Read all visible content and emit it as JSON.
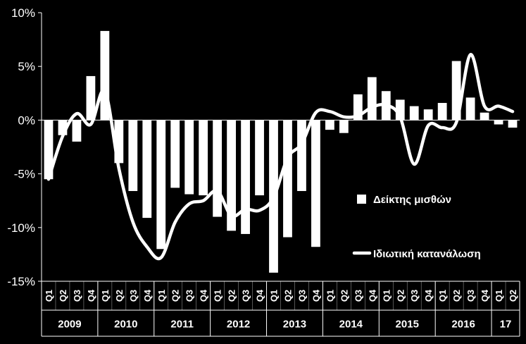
{
  "chart_data": {
    "type": "bar",
    "y_axis": {
      "ticks": [
        10,
        5,
        0,
        -5,
        -10,
        -15
      ],
      "tick_labels": [
        "10%",
        "5%",
        "0%",
        "-5%",
        "-10%",
        "-15%"
      ],
      "ylim": [
        -15,
        10
      ]
    },
    "x_quarter_labels": [
      "Q1",
      "Q2",
      "Q3",
      "Q4",
      "Q1",
      "Q2",
      "Q3",
      "Q4",
      "Q1",
      "Q2",
      "Q3",
      "Q4",
      "Q1",
      "Q2",
      "Q3",
      "Q4",
      "Q1",
      "Q2",
      "Q3",
      "Q4",
      "Q1",
      "Q2",
      "Q3",
      "Q4",
      "Q1",
      "Q2",
      "Q3",
      "Q4",
      "Q1",
      "Q2",
      "Q3",
      "Q4",
      "Q1",
      "Q2"
    ],
    "year_groups": [
      {
        "label": "2009",
        "count": 4
      },
      {
        "label": "2010",
        "count": 4
      },
      {
        "label": "2011",
        "count": 4
      },
      {
        "label": "2012",
        "count": 4
      },
      {
        "label": "2013",
        "count": 4
      },
      {
        "label": "2014",
        "count": 4
      },
      {
        "label": "2015",
        "count": 4
      },
      {
        "label": "2016",
        "count": 4
      },
      {
        "label": "17",
        "count": 2
      }
    ],
    "series": [
      {
        "name": "Δείκτης μισθών",
        "type": "bar",
        "color": "#ffffff",
        "values": [
          -5.5,
          -1.4,
          -2.0,
          4.1,
          8.3,
          -4.0,
          -6.6,
          -9.1,
          -12.0,
          -6.3,
          -6.9,
          -7.0,
          -9.0,
          -10.3,
          -10.6,
          -7.0,
          -14.2,
          -10.9,
          -6.6,
          -11.8,
          -0.9,
          -1.2,
          2.4,
          4.0,
          2.7,
          1.9,
          1.3,
          1.0,
          1.6,
          5.5,
          2.1,
          0.7,
          -0.4,
          -0.7
        ]
      },
      {
        "name": "Ιδιωτική κατανάλωση",
        "type": "line",
        "color": "#ffffff",
        "values": [
          -5.5,
          -1.5,
          0.6,
          -0.4,
          2.7,
          -4.5,
          -9.5,
          -11.8,
          -12.8,
          -9.5,
          -7.8,
          -7.5,
          -6.6,
          -8.9,
          -8.3,
          -8.4,
          -7.2,
          -3.5,
          -2.2,
          0.7,
          0.8,
          0.3,
          0.4,
          1.2,
          1.4,
          0.3,
          -4.1,
          -0.5,
          -0.7,
          -0.2,
          6.1,
          1.3,
          1.3,
          0.8
        ]
      }
    ],
    "legend": {
      "position": "right-middle"
    },
    "grid": false
  }
}
